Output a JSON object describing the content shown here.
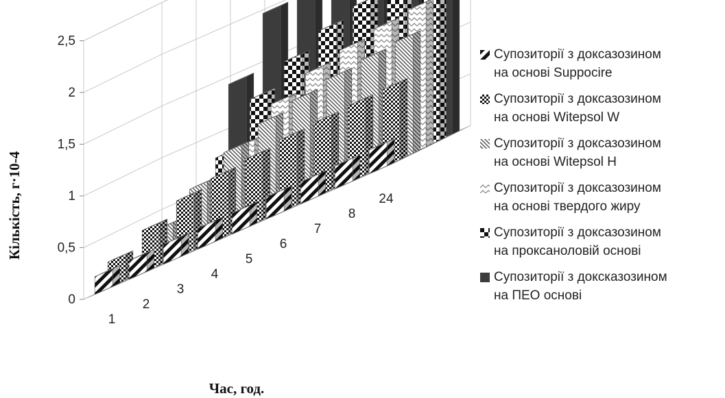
{
  "chart_data": {
    "type": "bar",
    "subtype": "3d-column",
    "categories": [
      "1",
      "2",
      "3",
      "4",
      "5",
      "6",
      "7",
      "8",
      "24"
    ],
    "xlabel": "Час, год.",
    "ylabel": "Кількість, г·10-4",
    "ylim": [
      0,
      2.5
    ],
    "yticks": [
      "0",
      "0,5",
      "1",
      "1,5",
      "2",
      "2,5"
    ],
    "grid": true,
    "legend_position": "right",
    "series": [
      {
        "name": "Супозиторії з доксазозином на основі Suppocire",
        "lines": [
          "Супозиторії з доксазозином",
          "на основі Suppocire"
        ],
        "pattern": "diagonal-stripes",
        "values": [
          0.17,
          0.18,
          0.19,
          0.2,
          0.2,
          0.21,
          0.21,
          0.22,
          0.23
        ]
      },
      {
        "name": "Супозиторії з доксазозином на основі Witepsol W",
        "lines": [
          "Супозиторії з доксазозином",
          "на основі Witepsol W"
        ],
        "pattern": "dense-checker",
        "values": [
          0.25,
          0.41,
          0.55,
          0.62,
          0.66,
          0.7,
          0.72,
          0.74,
          0.75
        ]
      },
      {
        "name": "Супозиторії з доксазозином на основі Witepsol H",
        "lines": [
          "Супозиторії з доксазозином",
          "на основі Witepsol H"
        ],
        "pattern": "fine-diagonal",
        "values": [
          0.1,
          0.35,
          0.6,
          0.81,
          0.94,
          1.02,
          1.08,
          1.12,
          1.15
        ]
      },
      {
        "name": "Супозиторії з доксазозином на основі твердого жиру",
        "lines": [
          "Супозиторії з доксазозином",
          "на основі твердого жиру"
        ],
        "pattern": "light-zigzag",
        "values": [
          0.05,
          0.15,
          0.4,
          0.8,
          1.07,
          1.22,
          1.3,
          1.36,
          1.4
        ]
      },
      {
        "name": "Супозиторії з доксазозином на проксаноловій основі",
        "lines": [
          "Супозиторії з доксазозином",
          "на проксаноловій основі"
        ],
        "pattern": "large-checker",
        "values": [
          0.02,
          0.07,
          0.78,
          1.2,
          1.42,
          1.57,
          1.66,
          1.72,
          1.76
        ]
      },
      {
        "name": "Супозиторії з доксказозином на ПЕО основі",
        "lines": [
          "Супозиторії з доксказозином",
          "на ПЕО основі"
        ],
        "pattern": "solid-dark",
        "values": [
          0.0,
          0.0,
          1.43,
          1.97,
          2.03,
          2.08,
          2.11,
          2.13,
          2.16
        ]
      }
    ]
  },
  "colors": {
    "solid": "#3c3c3c",
    "ink": "#111111",
    "grid": "#c8c8c8",
    "axis": "#888888"
  }
}
